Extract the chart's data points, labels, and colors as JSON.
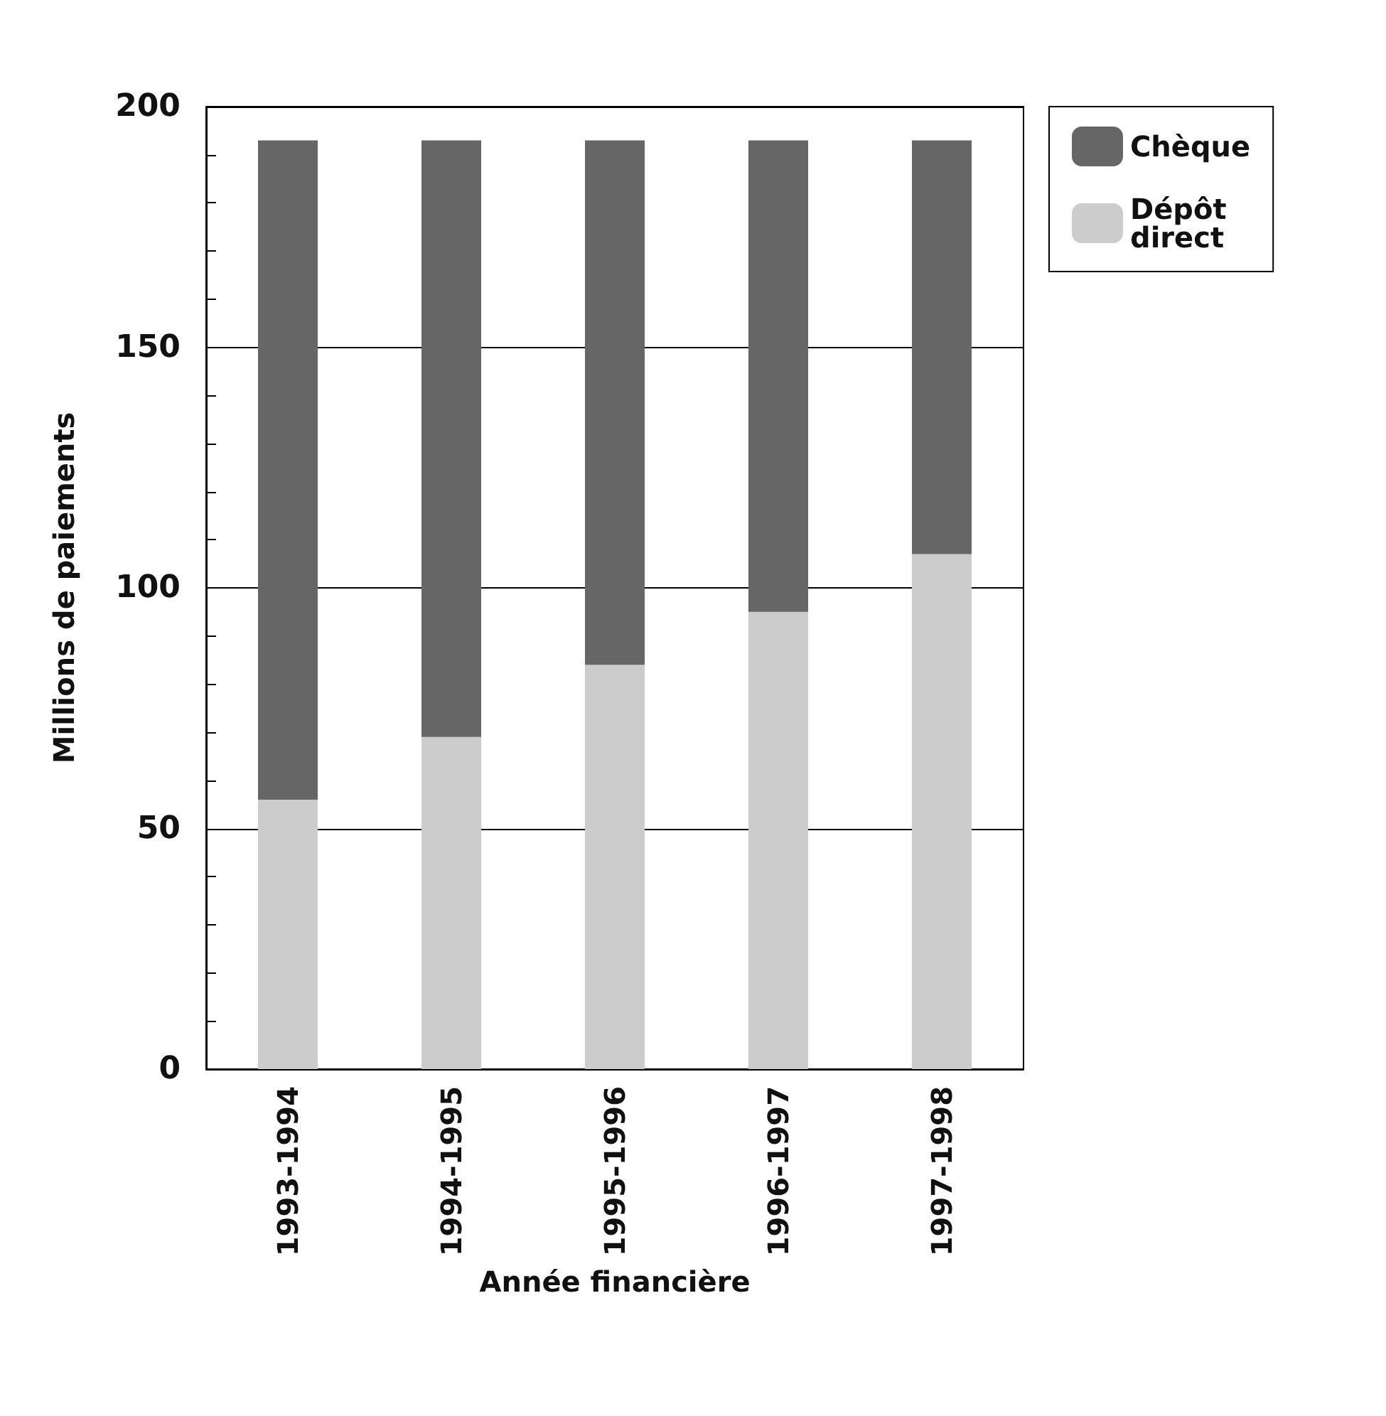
{
  "chart_data": {
    "type": "bar",
    "stacked": true,
    "xlabel": "Année financière",
    "ylabel": "Millions de paiements",
    "categories": [
      "1993-1994",
      "1994-1995",
      "1995-1996",
      "1996-1997",
      "1997-1998"
    ],
    "series": [
      {
        "name": "Dépôt direct",
        "color": "#cccccc",
        "values": [
          56,
          69,
          84,
          95,
          107
        ]
      },
      {
        "name": "Chèque",
        "color": "#666666",
        "values": [
          137,
          124,
          109,
          98,
          86
        ]
      }
    ],
    "ylim": [
      0,
      200
    ],
    "yticks": [
      0,
      {
        "value": 10,
        "label": null
      },
      {
        "value": 20,
        "label": null
      },
      {
        "value": 30,
        "label": null
      },
      {
        "value": 40,
        "label": null
      },
      50,
      {
        "value": 60,
        "label": null
      },
      {
        "value": 70,
        "label": null
      },
      {
        "value": 80,
        "label": null
      },
      {
        "value": 90,
        "label": null
      },
      100,
      {
        "value": 110,
        "label": null
      },
      {
        "value": 120,
        "label": null
      },
      {
        "value": 130,
        "label": null
      },
      {
        "value": 140,
        "label": null
      },
      150,
      {
        "value": 160,
        "label": null
      },
      {
        "value": 170,
        "label": null
      },
      {
        "value": 180,
        "label": null
      },
      {
        "value": 190,
        "label": null
      },
      200
    ],
    "grid": "y",
    "legend": "top right"
  }
}
